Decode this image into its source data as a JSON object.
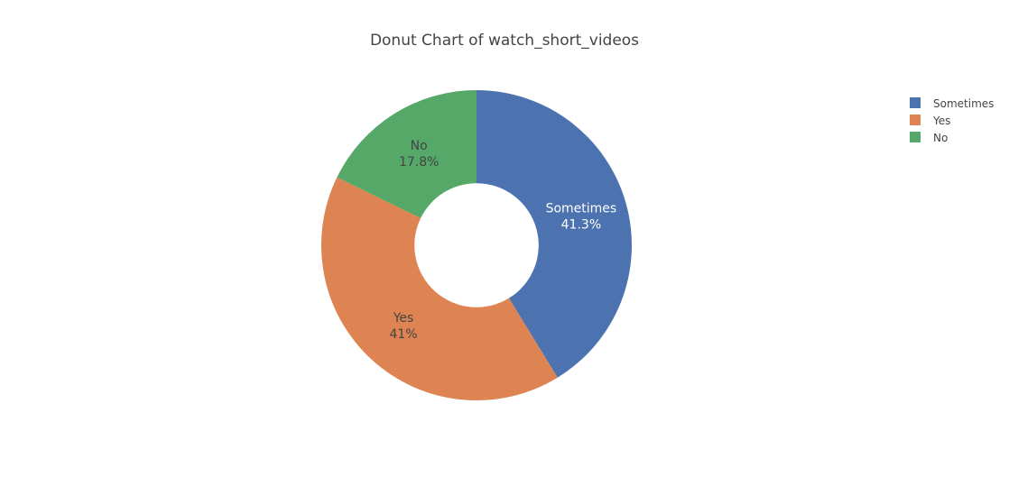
{
  "chart_data": {
    "type": "pie",
    "title": "Donut Chart of watch_short_videos",
    "hole": 0.4,
    "slices": [
      {
        "label": "Sometimes",
        "value": 41.3,
        "percent_label": "41.3%",
        "color": "#4c72b0",
        "text_color": "#ffffff"
      },
      {
        "label": "Yes",
        "value": 41.0,
        "percent_label": "41%",
        "color": "#dd8452",
        "text_color": "#444444"
      },
      {
        "label": "No",
        "value": 17.8,
        "percent_label": "17.8%",
        "color": "#55a868",
        "text_color": "#444444"
      }
    ],
    "legend": {
      "position": "top-right",
      "items": [
        "Sometimes",
        "Yes",
        "No"
      ]
    }
  }
}
